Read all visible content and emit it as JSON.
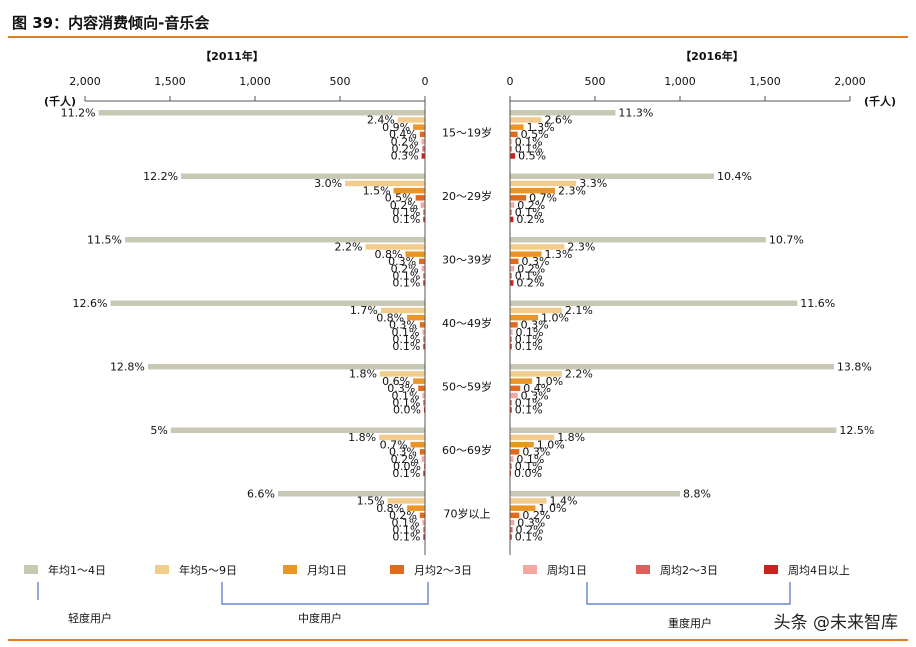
{
  "header": {
    "title": "图 39：内容消费倾向-音乐会"
  },
  "watermark": "头条 @未来智库",
  "colors": {
    "rule": "#e07a1f",
    "axis": "#555555",
    "bracket": "#4a6fc0",
    "series": [
      "#c9c8b4",
      "#f2cc8c",
      "#ec9527",
      "#e06a1d",
      "#f2a7a0",
      "#dd5e5a",
      "#c8231f"
    ]
  },
  "chart_data": [
    {
      "type": "bar",
      "orientation": "horizontal",
      "direction": "left",
      "title": "【2011年】",
      "unit_label": "(千人)",
      "xlim": [
        0,
        2000
      ],
      "ticks": [
        2000,
        1500,
        1000,
        500,
        0
      ],
      "tick_labels": [
        "2,000",
        "1,500",
        "1,000",
        "500",
        "0"
      ],
      "categories": [
        "15～19岁",
        "20～29岁",
        "30～39岁",
        "40～49岁",
        "50～59岁",
        "60～69岁",
        "70岁以上"
      ],
      "series": [
        {
          "name": "年均1～4日",
          "values": [
            1920,
            1435,
            1765,
            1850,
            1630,
            1495,
            865
          ],
          "labels": [
            "11.2%",
            "12.2%",
            "11.5%",
            "12.6%",
            "12.8%",
            "5%",
            "6.6%"
          ]
        },
        {
          "name": "年均5～9日",
          "values": [
            160,
            470,
            350,
            260,
            265,
            270,
            220
          ],
          "labels": [
            "2.4%",
            "3.0%",
            "2.2%",
            "1.7%",
            "1.8%",
            "1.8%",
            "1.5%"
          ]
        },
        {
          "name": "月均1日",
          "values": [
            70,
            185,
            115,
            105,
            70,
            85,
            105
          ],
          "labels": [
            "0.9%",
            "1.5%",
            "0.8%",
            "0.8%",
            "0.6%",
            "0.7%",
            "0.8%"
          ]
        },
        {
          "name": "月均2～3日",
          "values": [
            30,
            55,
            35,
            30,
            40,
            30,
            30
          ],
          "labels": [
            "0.4%",
            "0.5%",
            "0.3%",
            "0.3%",
            "0.3%",
            "0.3%",
            "0.2%"
          ]
        },
        {
          "name": "周均1日",
          "values": [
            20,
            25,
            20,
            15,
            15,
            20,
            15
          ],
          "labels": [
            "0.2%",
            "0.2%",
            "0.2%",
            "0.1%",
            "0.1%",
            "0.2%",
            "0.1%"
          ]
        },
        {
          "name": "周均2～3日",
          "values": [
            15,
            10,
            10,
            10,
            10,
            5,
            10
          ],
          "labels": [
            "0.2%",
            "0.1%",
            "0.1%",
            "0.1%",
            "0.1%",
            "0.0%",
            "0.1%"
          ]
        },
        {
          "name": "周均4日以上",
          "values": [
            20,
            10,
            10,
            10,
            5,
            10,
            10
          ],
          "labels": [
            "0.3%",
            "0.1%",
            "0.1%",
            "0.1%",
            "0.0%",
            "0.1%",
            "0.1%"
          ]
        }
      ]
    },
    {
      "type": "bar",
      "orientation": "horizontal",
      "direction": "right",
      "title": "【2016年】",
      "unit_label": "(千人)",
      "xlim": [
        0,
        2000
      ],
      "ticks": [
        0,
        500,
        1000,
        1500,
        2000
      ],
      "tick_labels": [
        "0",
        "500",
        "1,000",
        "1,500",
        "2,000"
      ],
      "categories": [
        "15～19岁",
        "20～29岁",
        "30～39岁",
        "40～49岁",
        "50～59岁",
        "60～69岁",
        "70岁以上"
      ],
      "series": [
        {
          "name": "年均1～4日",
          "values": [
            620,
            1200,
            1505,
            1690,
            1905,
            1920,
            1000
          ],
          "labels": [
            "11.3%",
            "10.4%",
            "10.7%",
            "11.6%",
            "13.8%",
            "12.5%",
            "8.8%"
          ]
        },
        {
          "name": "年均5～9日",
          "values": [
            185,
            390,
            320,
            305,
            305,
            260,
            215
          ],
          "labels": [
            "2.6%",
            "3.3%",
            "2.3%",
            "2.1%",
            "2.2%",
            "1.8%",
            "1.4%"
          ]
        },
        {
          "name": "月均1日",
          "values": [
            80,
            265,
            185,
            165,
            130,
            140,
            150
          ],
          "labels": [
            "1.3%",
            "2.3%",
            "1.3%",
            "1.0%",
            "1.0%",
            "1.0%",
            "1.0%"
          ]
        },
        {
          "name": "月均2～3日",
          "values": [
            45,
            95,
            50,
            45,
            60,
            55,
            55
          ],
          "labels": [
            "0.5%",
            "0.7%",
            "0.3%",
            "0.3%",
            "0.4%",
            "0.3%",
            "0.2%"
          ]
        },
        {
          "name": "周均1日",
          "values": [
            10,
            25,
            25,
            15,
            45,
            20,
            25
          ],
          "labels": [
            "0.1%",
            "0.2%",
            "0.2%",
            "0.1%",
            "0.3%",
            "0.1%",
            "0.3%"
          ]
        },
        {
          "name": "周均2～3日",
          "values": [
            10,
            10,
            10,
            10,
            10,
            10,
            15
          ],
          "labels": [
            "0.1%",
            "0.1%",
            "0.1%",
            "0.1%",
            "0.1%",
            "0.1%",
            "0.2%"
          ]
        },
        {
          "name": "周均4日以上",
          "values": [
            30,
            20,
            20,
            10,
            10,
            5,
            10
          ],
          "labels": [
            "0.5%",
            "0.2%",
            "0.2%",
            "0.1%",
            "0.1%",
            "0.0%",
            "0.1%"
          ]
        }
      ]
    }
  ],
  "legend": {
    "items": [
      "年均1～4日",
      "年均5～9日",
      "月均1日",
      "月均2～3日",
      "周均1日",
      "周均2～3日",
      "周均4日以上"
    ],
    "groups": [
      "轻度用户",
      "中度用户",
      "重度用户"
    ]
  }
}
